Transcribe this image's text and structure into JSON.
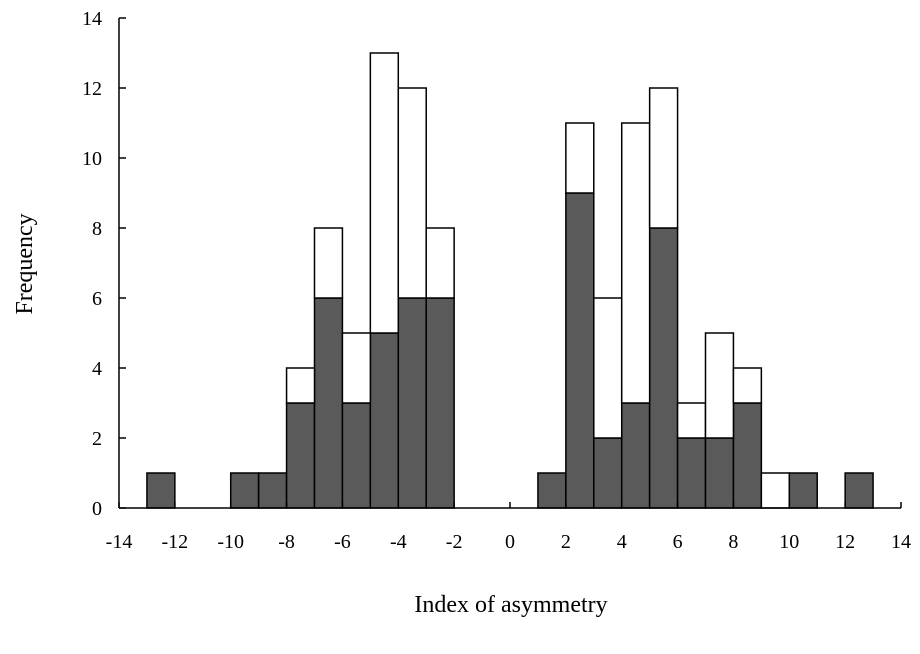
{
  "chart_data": {
    "type": "bar",
    "title": "",
    "xlabel": "Index of asymmetry",
    "ylabel": "Frequency",
    "xlim": [
      -14,
      14
    ],
    "ylim": [
      0,
      14
    ],
    "x_ticks": [
      -14,
      -12,
      -10,
      -8,
      -6,
      -4,
      -2,
      0,
      2,
      4,
      6,
      8,
      10,
      12,
      14
    ],
    "y_ticks": [
      0,
      2,
      4,
      6,
      8,
      10,
      12,
      14
    ],
    "x_tick_labels": [
      "-14",
      "-12",
      "-10",
      "-8",
      "-6",
      "-4",
      "-2",
      "0",
      "2",
      "4",
      "6",
      "8",
      "10",
      "12",
      "14"
    ],
    "y_tick_labels": [
      "0",
      "2",
      "4",
      "6",
      "8",
      "10",
      "12",
      "14"
    ],
    "grid": false,
    "legend": "none",
    "stacked": true,
    "bin_width": 1,
    "bin_starts": [
      -13,
      -12,
      -11,
      -10,
      -9,
      -8,
      -7,
      -6,
      -5,
      -4,
      -3,
      -2,
      -1,
      0,
      1,
      2,
      3,
      4,
      5,
      6,
      7,
      8,
      9,
      10,
      11,
      12
    ],
    "series": [
      {
        "color": "#5a5a5a",
        "values": [
          1,
          0,
          0,
          1,
          1,
          3,
          6,
          3,
          5,
          6,
          6,
          0,
          0,
          0,
          1,
          9,
          2,
          3,
          8,
          2,
          2,
          3,
          0,
          1,
          0,
          1
        ]
      },
      {
        "color": "#ffffff",
        "values": [
          0,
          0,
          0,
          0,
          0,
          1,
          2,
          2,
          8,
          6,
          2,
          0,
          0,
          0,
          0,
          2,
          4,
          8,
          4,
          1,
          3,
          1,
          1,
          0,
          0,
          0
        ]
      }
    ]
  }
}
